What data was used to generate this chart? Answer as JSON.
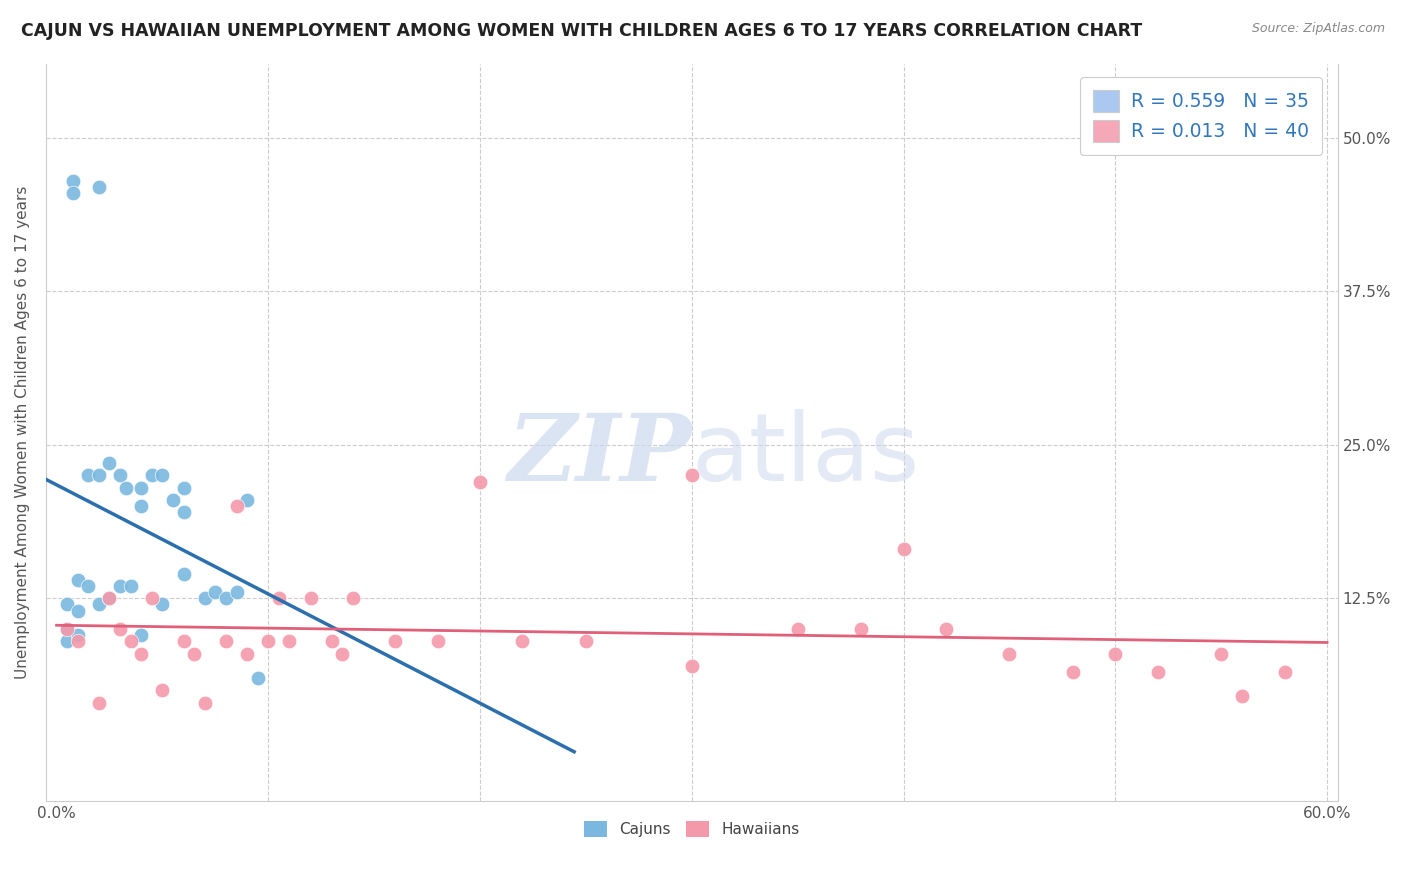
{
  "title": "CAJUN VS HAWAIIAN UNEMPLOYMENT AMONG WOMEN WITH CHILDREN AGES 6 TO 17 YEARS CORRELATION CHART",
  "source": "Source: ZipAtlas.com",
  "ylabel": "Unemployment Among Women with Children Ages 6 to 17 years",
  "xlim": [
    0.0,
    0.6
  ],
  "ylim": [
    -0.04,
    0.56
  ],
  "xtick_positions": [
    0.0,
    0.1,
    0.2,
    0.3,
    0.4,
    0.5,
    0.6
  ],
  "xticklabels": [
    "0.0%",
    "",
    "",
    "",
    "",
    "",
    "60.0%"
  ],
  "ytick_positions": [
    0.0,
    0.125,
    0.25,
    0.375,
    0.5
  ],
  "yticklabels_right": [
    "",
    "12.5%",
    "25.0%",
    "37.5%",
    "50.0%"
  ],
  "legend_r1": "R = 0.559   N = 35",
  "legend_r2": "R = 0.013   N = 40",
  "legend_color1": "#aac8f0",
  "legend_color2": "#f4a8b8",
  "bottom_legend": [
    "Cajuns",
    "Hawaiians"
  ],
  "cajun_color": "#7ab8e0",
  "hawaiian_color": "#f499aa",
  "cajun_line_color": "#2c6fad",
  "hawaiian_line_color": "#e0607a",
  "grid_color": "#cccccc",
  "watermark_color": "#ccd9ee",
  "cajun_x": [
    0.005,
    0.005,
    0.005,
    0.008,
    0.008,
    0.01,
    0.01,
    0.01,
    0.015,
    0.015,
    0.02,
    0.02,
    0.02,
    0.025,
    0.025,
    0.03,
    0.03,
    0.033,
    0.035,
    0.04,
    0.04,
    0.04,
    0.045,
    0.05,
    0.05,
    0.055,
    0.06,
    0.06,
    0.06,
    0.07,
    0.075,
    0.08,
    0.085,
    0.09,
    0.095
  ],
  "cajun_y": [
    0.12,
    0.1,
    0.09,
    0.465,
    0.455,
    0.14,
    0.115,
    0.095,
    0.225,
    0.135,
    0.46,
    0.225,
    0.12,
    0.235,
    0.125,
    0.225,
    0.135,
    0.215,
    0.135,
    0.215,
    0.2,
    0.095,
    0.225,
    0.225,
    0.12,
    0.205,
    0.215,
    0.195,
    0.145,
    0.125,
    0.13,
    0.125,
    0.13,
    0.205,
    0.06
  ],
  "hawaiian_x": [
    0.005,
    0.01,
    0.02,
    0.025,
    0.03,
    0.035,
    0.04,
    0.045,
    0.05,
    0.06,
    0.065,
    0.07,
    0.08,
    0.085,
    0.09,
    0.1,
    0.105,
    0.11,
    0.12,
    0.13,
    0.135,
    0.14,
    0.16,
    0.18,
    0.2,
    0.22,
    0.25,
    0.3,
    0.35,
    0.38,
    0.4,
    0.42,
    0.5,
    0.52,
    0.55,
    0.56,
    0.58,
    0.3,
    0.45,
    0.48
  ],
  "hawaiian_y": [
    0.1,
    0.09,
    0.04,
    0.125,
    0.1,
    0.09,
    0.08,
    0.125,
    0.05,
    0.09,
    0.08,
    0.04,
    0.09,
    0.2,
    0.08,
    0.09,
    0.125,
    0.09,
    0.125,
    0.09,
    0.08,
    0.125,
    0.09,
    0.09,
    0.22,
    0.09,
    0.09,
    0.225,
    0.1,
    0.1,
    0.165,
    0.1,
    0.08,
    0.065,
    0.08,
    0.045,
    0.065,
    0.07,
    0.08,
    0.065
  ]
}
